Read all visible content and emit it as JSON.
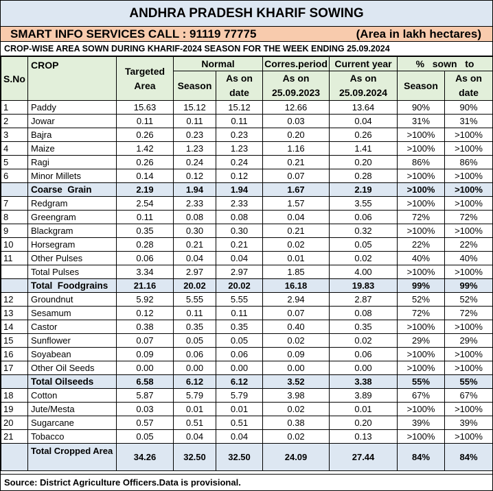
{
  "title": "ANDHRA PRADESH KHARIF SOWING",
  "info_left": "SMART INFO SERVICES CALL : 91119 77775",
  "info_right": "(Area in lakh hectares)",
  "subtitle": "CROP-WISE AREA SOWN DURING KHARIF-2024 SEASON FOR THE WEEK ENDING 25.09.2024",
  "headers": {
    "sno": "S.No",
    "crop": "CROP",
    "targeted": "Targeted",
    "area": "Area",
    "normal": "Normal",
    "season": "Season",
    "as_on": "As on",
    "date": "date",
    "corres": "Corres.period",
    "corres_date": "25.09.2023",
    "current": "Current year",
    "current_date": "25.09.2024",
    "pct_sown": "%   sown   to",
    "pct_season": "Season",
    "pct_date": "date"
  },
  "rows": [
    {
      "sno": "1",
      "crop": "Paddy",
      "target": "15.63",
      "season": "15.12",
      "asondate": "15.12",
      "corres": "12.66",
      "current": "13.64",
      "pct_season": "90%",
      "pct_date": "90%"
    },
    {
      "sno": "2",
      "crop": "Jowar",
      "target": "0.11",
      "season": "0.11",
      "asondate": "0.11",
      "corres": "0.03",
      "current": "0.04",
      "pct_season": "31%",
      "pct_date": "31%"
    },
    {
      "sno": "3",
      "crop": "Bajra",
      "target": "0.26",
      "season": "0.23",
      "asondate": "0.23",
      "corres": "0.20",
      "current": "0.26",
      "pct_season": ">100%",
      "pct_date": ">100%"
    },
    {
      "sno": "4",
      "crop": "Maize",
      "target": "1.42",
      "season": "1.23",
      "asondate": "1.23",
      "corres": "1.16",
      "current": "1.41",
      "pct_season": ">100%",
      "pct_date": ">100%"
    },
    {
      "sno": "5",
      "crop": "Ragi",
      "target": "0.26",
      "season": "0.24",
      "asondate": "0.24",
      "corres": "0.21",
      "current": "0.20",
      "pct_season": "86%",
      "pct_date": "86%"
    },
    {
      "sno": "6",
      "crop": "Minor Millets",
      "target": "0.14",
      "season": "0.12",
      "asondate": "0.12",
      "corres": "0.07",
      "current": "0.28",
      "pct_season": ">100%",
      "pct_date": ">100%"
    },
    {
      "sno": "",
      "crop": "Coarse  Grain",
      "target": "2.19",
      "season": "1.94",
      "asondate": "1.94",
      "corres": "1.67",
      "current": "2.19",
      "pct_season": ">100%",
      "pct_date": ">100%",
      "kind": "sub"
    },
    {
      "sno": "7",
      "crop": "Redgram",
      "target": "2.54",
      "season": "2.33",
      "asondate": "2.33",
      "corres": "1.57",
      "current": "3.55",
      "pct_season": ">100%",
      "pct_date": ">100%"
    },
    {
      "sno": "8",
      "crop": "Greengram",
      "target": "0.11",
      "season": "0.08",
      "asondate": "0.08",
      "corres": "0.04",
      "current": "0.06",
      "pct_season": "72%",
      "pct_date": "72%"
    },
    {
      "sno": "9",
      "crop": "Blackgram",
      "target": "0.35",
      "season": "0.30",
      "asondate": "0.30",
      "corres": "0.21",
      "current": "0.32",
      "pct_season": ">100%",
      "pct_date": ">100%"
    },
    {
      "sno": "10",
      "crop": "Horsegram",
      "target": "0.28",
      "season": "0.21",
      "asondate": "0.21",
      "corres": "0.02",
      "current": "0.05",
      "pct_season": "22%",
      "pct_date": "22%"
    },
    {
      "sno": "11",
      "crop": "Other Pulses",
      "target": "0.06",
      "season": "0.04",
      "asondate": "0.04",
      "corres": "0.01",
      "current": "0.02",
      "pct_season": "40%",
      "pct_date": "40%"
    },
    {
      "sno": "",
      "crop": "Total Pulses",
      "target": "3.34",
      "season": "2.97",
      "asondate": "2.97",
      "corres": "1.85",
      "current": "4.00",
      "pct_season": ">100%",
      "pct_date": ">100%"
    },
    {
      "sno": "",
      "crop": "Total  Foodgrains",
      "target": "21.16",
      "season": "20.02",
      "asondate": "20.02",
      "corres": "16.18",
      "current": "19.83",
      "pct_season": "99%",
      "pct_date": "99%",
      "kind": "sub"
    },
    {
      "sno": "12",
      "crop": "Groundnut",
      "target": "5.92",
      "season": "5.55",
      "asondate": "5.55",
      "corres": "2.94",
      "current": "2.87",
      "pct_season": "52%",
      "pct_date": "52%"
    },
    {
      "sno": "13",
      "crop": "Sesamum",
      "target": "0.12",
      "season": "0.11",
      "asondate": "0.11",
      "corres": "0.07",
      "current": "0.08",
      "pct_season": "72%",
      "pct_date": "72%"
    },
    {
      "sno": "14",
      "crop": "Castor",
      "target": "0.38",
      "season": "0.35",
      "asondate": "0.35",
      "corres": "0.40",
      "current": "0.35",
      "pct_season": ">100%",
      "pct_date": ">100%"
    },
    {
      "sno": "15",
      "crop": "Sunflower",
      "target": "0.07",
      "season": "0.05",
      "asondate": "0.05",
      "corres": "0.02",
      "current": "0.02",
      "pct_season": "29%",
      "pct_date": "29%"
    },
    {
      "sno": "16",
      "crop": "Soyabean",
      "target": "0.09",
      "season": "0.06",
      "asondate": "0.06",
      "corres": "0.09",
      "current": "0.06",
      "pct_season": ">100%",
      "pct_date": ">100%"
    },
    {
      "sno": "17",
      "crop": "Other Oil Seeds",
      "target": "0.00",
      "season": "0.00",
      "asondate": "0.00",
      "corres": "0.00",
      "current": "0.00",
      "pct_season": ">100%",
      "pct_date": ">100%"
    },
    {
      "sno": "",
      "crop": "Total Oilseeds",
      "target": "6.58",
      "season": "6.12",
      "asondate": "6.12",
      "corres": "3.52",
      "current": "3.38",
      "pct_season": "55%",
      "pct_date": "55%",
      "kind": "sub"
    },
    {
      "sno": "18",
      "crop": "Cotton",
      "target": "5.87",
      "season": "5.79",
      "asondate": "5.79",
      "corres": "3.98",
      "current": "3.89",
      "pct_season": "67%",
      "pct_date": "67%"
    },
    {
      "sno": "19",
      "crop": "Jute/Mesta",
      "target": "0.03",
      "season": "0.01",
      "asondate": "0.01",
      "corres": "0.02",
      "current": "0.01",
      "pct_season": ">100%",
      "pct_date": ">100%"
    },
    {
      "sno": "20",
      "crop": "Sugarcane",
      "target": "0.57",
      "season": "0.51",
      "asondate": "0.51",
      "corres": "0.38",
      "current": "0.20",
      "pct_season": "39%",
      "pct_date": "39%"
    },
    {
      "sno": "21",
      "crop": "Tobacco",
      "target": "0.05",
      "season": "0.04",
      "asondate": "0.04",
      "corres": "0.02",
      "current": "0.13",
      "pct_season": ">100%",
      "pct_date": ">100%"
    },
    {
      "sno": "",
      "crop": "Total Cropped Area",
      "target": "34.26",
      "season": "32.50",
      "asondate": "32.50",
      "corres": "24.09",
      "current": "27.44",
      "pct_season": "84%",
      "pct_date": "84%",
      "kind": "total"
    }
  ],
  "source": "Source:  District  Agriculture Officers.Data is provisional.",
  "colors": {
    "header_blue": "#dde7f2",
    "info_peach": "#f8cbad",
    "header_green": "#e2efda"
  }
}
